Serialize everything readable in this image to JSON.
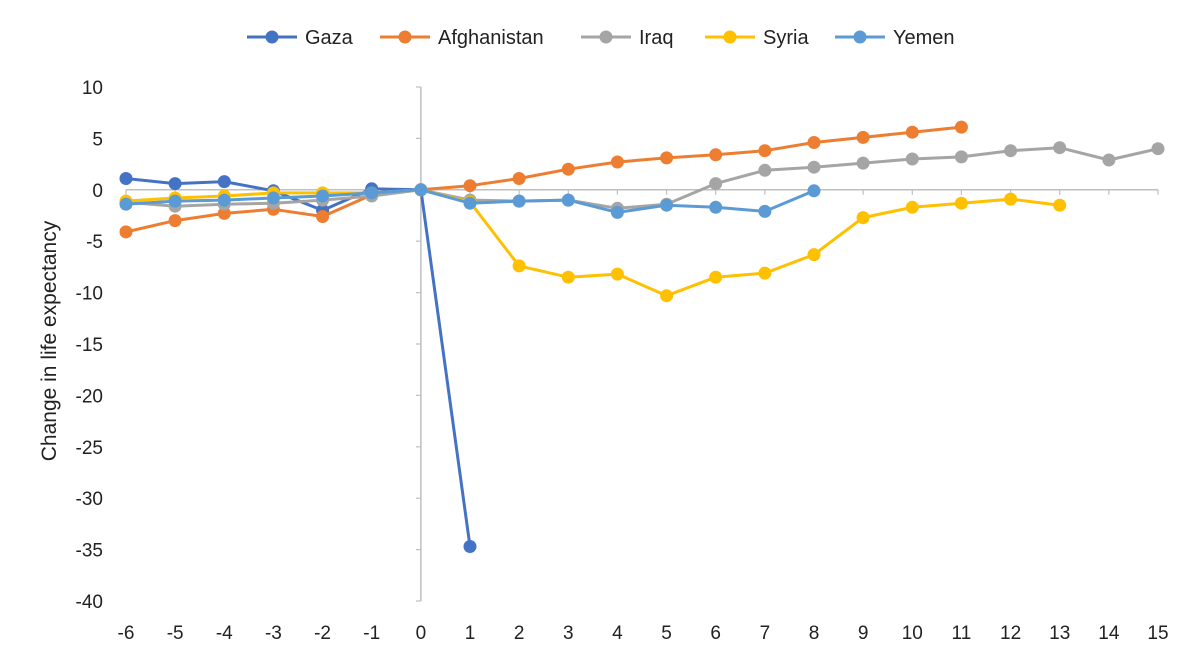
{
  "chart_data": {
    "type": "line",
    "title": "",
    "xlabel": "",
    "ylabel": "Change in life expectancy",
    "xlim": [
      -6,
      15
    ],
    "ylim": [
      -40,
      10
    ],
    "x_ticks": [
      "-6",
      "-5",
      "-4",
      "-3",
      "-2",
      "-1",
      "0",
      "1",
      "2",
      "3",
      "4",
      "5",
      "6",
      "7",
      "8",
      "9",
      "10",
      "11",
      "12",
      "13",
      "14",
      "15"
    ],
    "y_ticks": [
      "10",
      "5",
      "0",
      "-5",
      "-10",
      "-15",
      "-20",
      "-25",
      "-30",
      "-35",
      "-40"
    ],
    "legend_position": "top",
    "series": [
      {
        "name": "Gaza",
        "color": "#4472C4",
        "x": [
          -6,
          -5,
          -4,
          -3,
          -2,
          -1,
          0,
          1
        ],
        "values": [
          1.1,
          0.6,
          0.8,
          -0.1,
          -2.0,
          0.1,
          0,
          -34.7
        ]
      },
      {
        "name": "Afghanistan",
        "color": "#ED7D31",
        "x": [
          -6,
          -5,
          -4,
          -3,
          -2,
          -1,
          0,
          1,
          2,
          3,
          4,
          5,
          6,
          7,
          8,
          9,
          10,
          11
        ],
        "values": [
          -4.1,
          -3.0,
          -2.3,
          -1.9,
          -2.6,
          -0.5,
          0,
          0.4,
          1.1,
          2.0,
          2.7,
          3.1,
          3.4,
          3.8,
          4.6,
          5.1,
          5.6,
          6.1
        ]
      },
      {
        "name": "Iraq",
        "color": "#A5A5A5",
        "x": [
          -6,
          -5,
          -4,
          -3,
          -2,
          -1,
          0,
          1,
          2,
          3,
          4,
          5,
          6,
          7,
          8,
          9,
          10,
          11,
          12,
          13,
          14,
          15
        ],
        "values": [
          -1.2,
          -1.6,
          -1.4,
          -1.3,
          -1.0,
          -0.6,
          0,
          -1.0,
          -1.1,
          -1.0,
          -1.8,
          -1.4,
          0.6,
          1.9,
          2.2,
          2.6,
          3.0,
          3.2,
          3.8,
          4.1,
          2.9,
          4.0
        ]
      },
      {
        "name": "Syria",
        "color": "#FFC000",
        "x": [
          -6,
          -5,
          -4,
          -3,
          -2,
          -1,
          0,
          1,
          2,
          3,
          4,
          5,
          6,
          7,
          8,
          9,
          10,
          11,
          12,
          13
        ],
        "values": [
          -1.1,
          -0.8,
          -0.6,
          -0.3,
          -0.3,
          -0.3,
          0,
          -1.2,
          -7.4,
          -8.5,
          -8.2,
          -10.3,
          -8.5,
          -8.1,
          -6.3,
          -2.7,
          -1.7,
          -1.3,
          -0.9,
          -1.5
        ]
      },
      {
        "name": "Yemen",
        "color": "#5B9BD5",
        "x": [
          -6,
          -5,
          -4,
          -3,
          -2,
          -1,
          0,
          1,
          2,
          3,
          4,
          5,
          6,
          7,
          8
        ],
        "values": [
          -1.4,
          -1.1,
          -1.0,
          -0.8,
          -0.6,
          -0.3,
          0,
          -1.3,
          -1.1,
          -1.0,
          -2.2,
          -1.5,
          -1.7,
          -2.1,
          -0.1
        ]
      }
    ]
  }
}
